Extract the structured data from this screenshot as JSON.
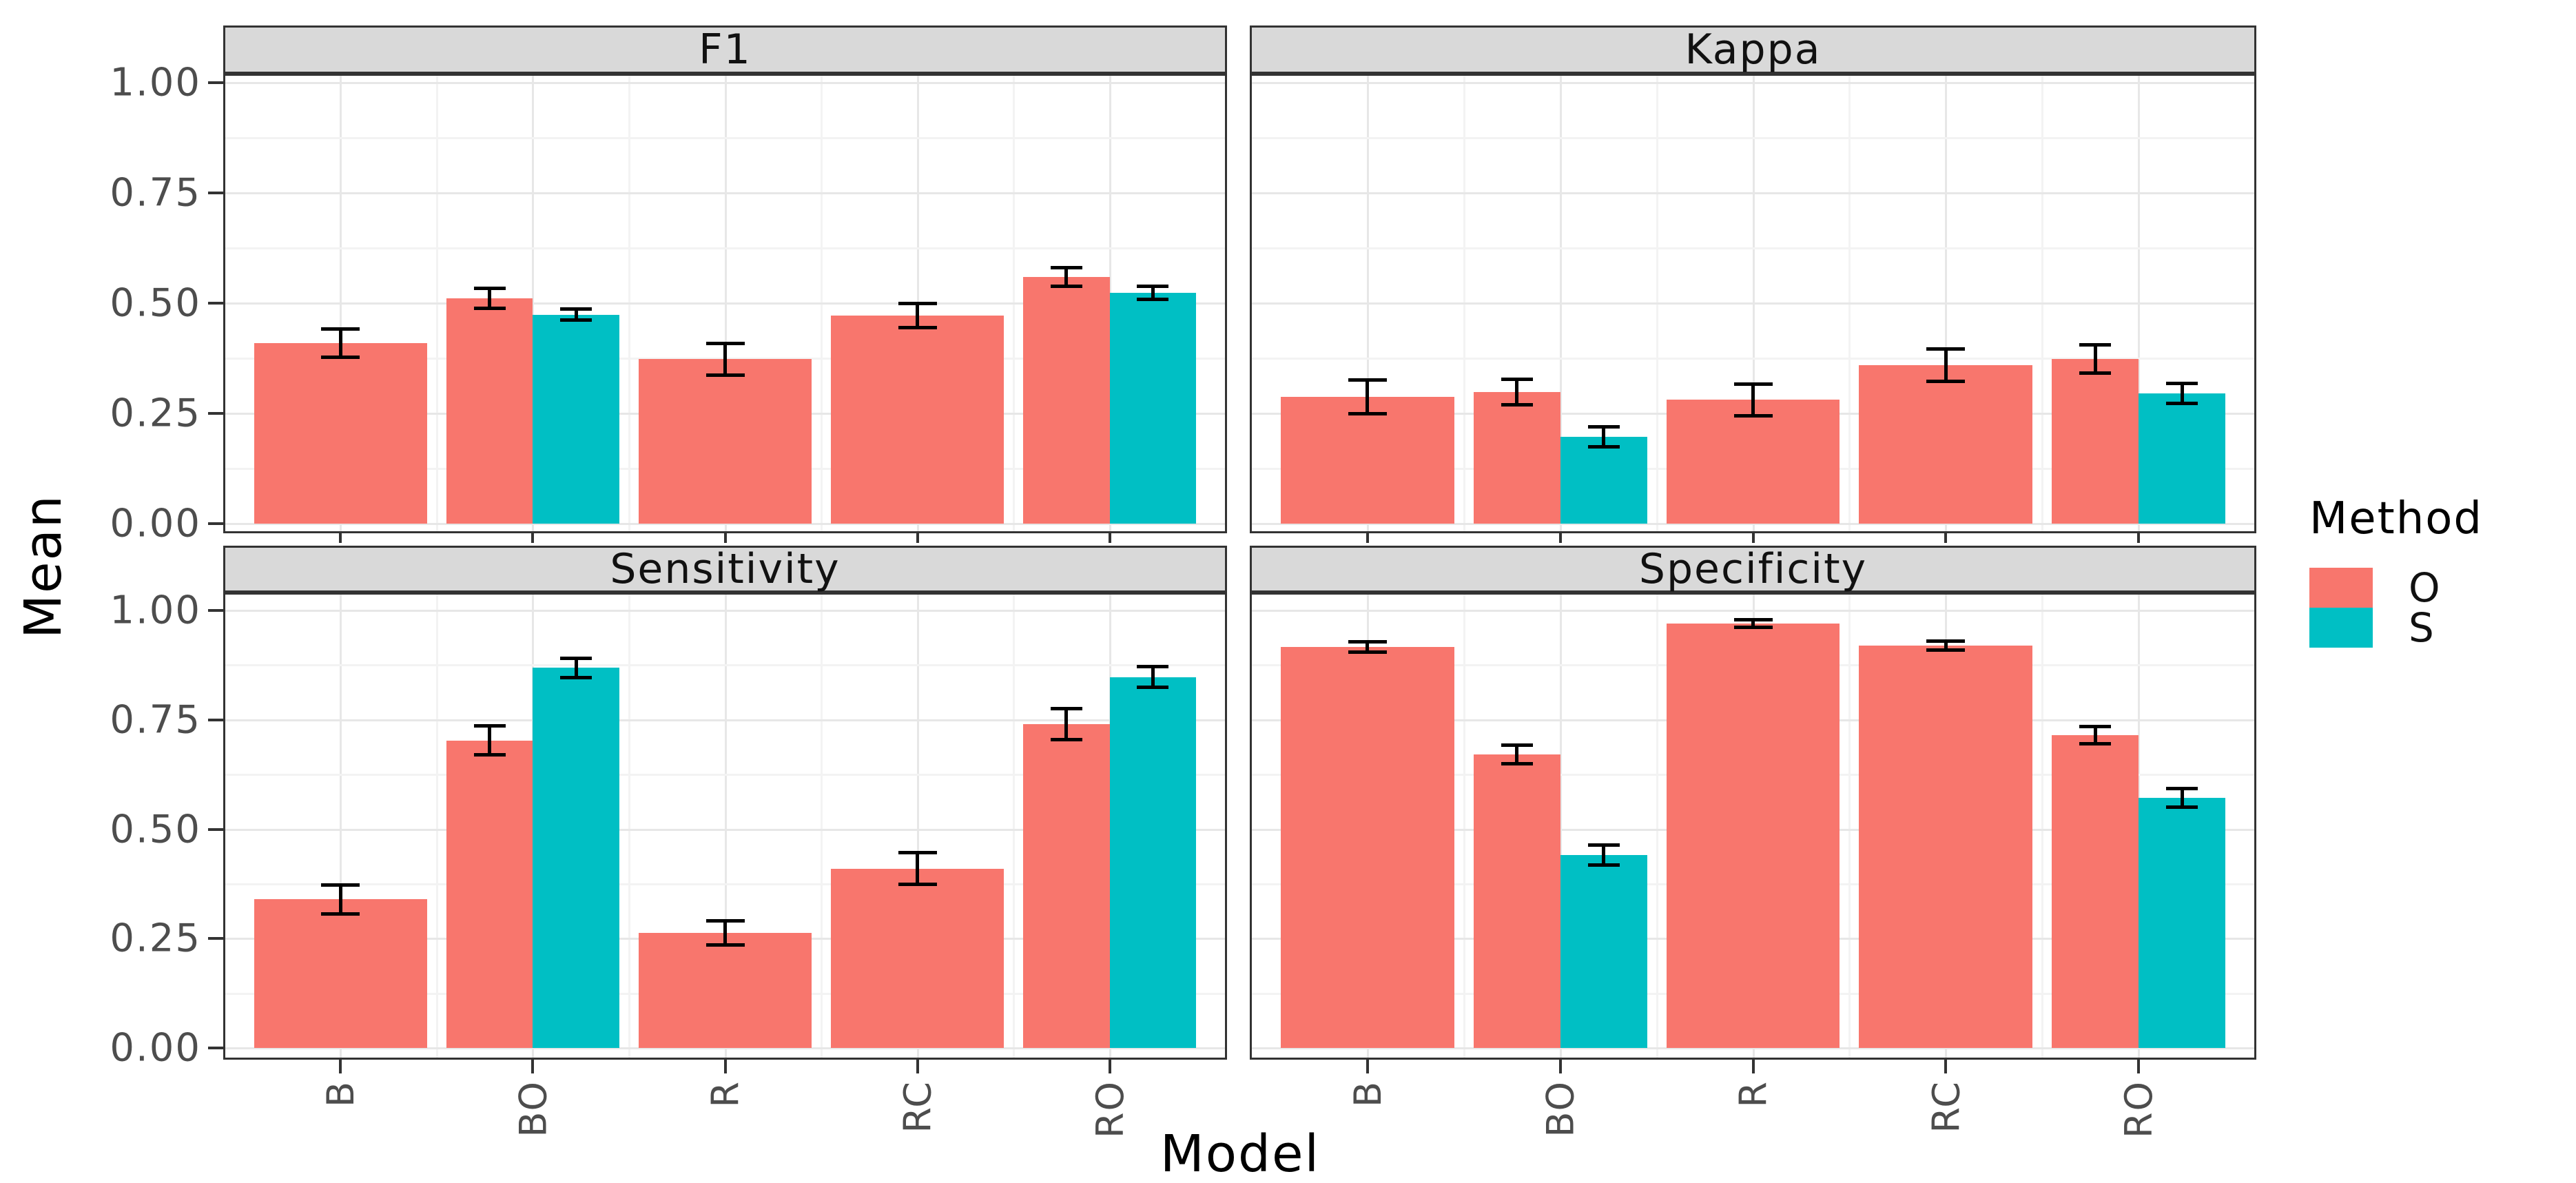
{
  "figure": {
    "y_axis_title": "Mean",
    "x_axis_title": "Model",
    "y_ticks": [
      "1.00",
      "0.75",
      "0.50",
      "0.25",
      "0.00"
    ],
    "legend": {
      "title": "Method",
      "entries": [
        {
          "label": "O",
          "color": "#F8766D"
        },
        {
          "label": "S",
          "color": "#00BFC4"
        }
      ]
    }
  },
  "chart_data": {
    "type": "bar",
    "title": "",
    "xlabel": "Model",
    "ylabel": "Mean",
    "ylim": [
      0,
      1
    ],
    "y_major_ticks": [
      0,
      0.25,
      0.5,
      0.75,
      1.0
    ],
    "y_minor_ticks": [
      0.125,
      0.375,
      0.625,
      0.875
    ],
    "categories": [
      "B",
      "BO",
      "R",
      "RC",
      "RO"
    ],
    "legend_title": "Method",
    "legend_position": "right",
    "grid": "major and minor horizontal gridlines, light gray on white",
    "error_bars": "black whiskers, mean plus-minus err",
    "methods": [
      {
        "name": "O",
        "color": "#F8766D"
      },
      {
        "name": "S",
        "color": "#00BFC4"
      }
    ],
    "facets": [
      {
        "title": "F1",
        "bars": [
          {
            "model": "B",
            "method": "O",
            "mean": 0.41,
            "err": 0.032
          },
          {
            "model": "BO",
            "method": "O",
            "mean": 0.511,
            "err": 0.022
          },
          {
            "model": "BO",
            "method": "S",
            "mean": 0.474,
            "err": 0.012
          },
          {
            "model": "R",
            "method": "O",
            "mean": 0.373,
            "err": 0.036
          },
          {
            "model": "RC",
            "method": "O",
            "mean": 0.472,
            "err": 0.028
          },
          {
            "model": "RO",
            "method": "O",
            "mean": 0.56,
            "err": 0.021
          },
          {
            "model": "RO",
            "method": "S",
            "mean": 0.524,
            "err": 0.015
          }
        ]
      },
      {
        "title": "Kappa",
        "bars": [
          {
            "model": "B",
            "method": "O",
            "mean": 0.288,
            "err": 0.038
          },
          {
            "model": "BO",
            "method": "O",
            "mean": 0.298,
            "err": 0.029
          },
          {
            "model": "BO",
            "method": "S",
            "mean": 0.197,
            "err": 0.022
          },
          {
            "model": "R",
            "method": "O",
            "mean": 0.281,
            "err": 0.036
          },
          {
            "model": "RC",
            "method": "O",
            "mean": 0.359,
            "err": 0.037
          },
          {
            "model": "RO",
            "method": "O",
            "mean": 0.374,
            "err": 0.032
          },
          {
            "model": "RO",
            "method": "S",
            "mean": 0.295,
            "err": 0.023
          }
        ]
      },
      {
        "title": "Sensitivity",
        "bars": [
          {
            "model": "B",
            "method": "O",
            "mean": 0.34,
            "err": 0.033
          },
          {
            "model": "BO",
            "method": "O",
            "mean": 0.703,
            "err": 0.033
          },
          {
            "model": "BO",
            "method": "S",
            "mean": 0.869,
            "err": 0.022
          },
          {
            "model": "R",
            "method": "O",
            "mean": 0.263,
            "err": 0.028
          },
          {
            "model": "RC",
            "method": "O",
            "mean": 0.41,
            "err": 0.036
          },
          {
            "model": "RO",
            "method": "O",
            "mean": 0.74,
            "err": 0.035
          },
          {
            "model": "RO",
            "method": "S",
            "mean": 0.848,
            "err": 0.023
          }
        ]
      },
      {
        "title": "Specificity",
        "bars": [
          {
            "model": "B",
            "method": "O",
            "mean": 0.916,
            "err": 0.012
          },
          {
            "model": "BO",
            "method": "O",
            "mean": 0.671,
            "err": 0.021
          },
          {
            "model": "BO",
            "method": "S",
            "mean": 0.441,
            "err": 0.023
          },
          {
            "model": "R",
            "method": "O",
            "mean": 0.97,
            "err": 0.008
          },
          {
            "model": "RC",
            "method": "O",
            "mean": 0.92,
            "err": 0.01
          },
          {
            "model": "RO",
            "method": "O",
            "mean": 0.715,
            "err": 0.02
          },
          {
            "model": "RO",
            "method": "S",
            "mean": 0.572,
            "err": 0.021
          }
        ]
      }
    ]
  }
}
